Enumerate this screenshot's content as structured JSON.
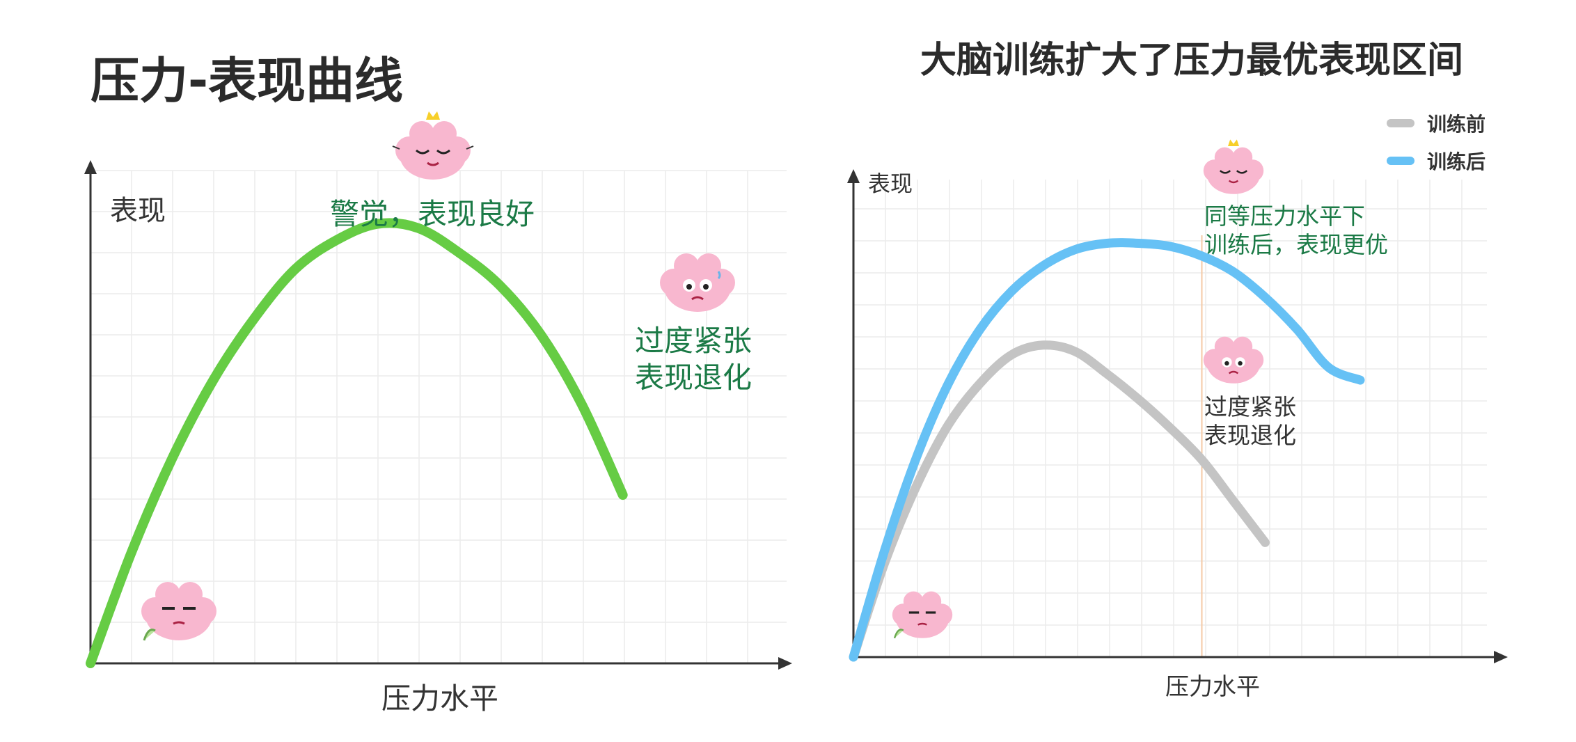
{
  "colors": {
    "left_curve": "#66cc44",
    "before_curve": "#c4c4c4",
    "after_curve": "#66c1f5",
    "annotation_green": "#1b7a46",
    "marker_line": "#f4c9a6",
    "axis": "#333333",
    "grid": "#ececec"
  },
  "icons": [
    "brain-bored-icon",
    "brain-crowned-calm-icon",
    "brain-worried-icon"
  ],
  "chart_data": [
    {
      "type": "line",
      "title": "压力-表现曲线",
      "xlabel": "压力水平",
      "ylabel": "表现",
      "grid": true,
      "xlim": [
        0,
        17
      ],
      "ylim": [
        0,
        12
      ],
      "series": [
        {
          "x": [
            0,
            1,
            2,
            3,
            4,
            5,
            6,
            7,
            8,
            9,
            10,
            11,
            12,
            13
          ],
          "values": [
            0.0,
            2.7,
            5.0,
            6.9,
            8.4,
            9.6,
            10.3,
            10.7,
            10.6,
            10.0,
            9.2,
            8.0,
            6.3,
            4.1
          ]
        }
      ],
      "annotations": [
        {
          "text": "警觉，表现良好",
          "near_x": 8
        },
        {
          "text": "过度紧张\n表现退化",
          "near_x": 13
        }
      ]
    },
    {
      "type": "line",
      "title": "大脑训练扩大了压力最优表现区间",
      "xlabel": "压力水平",
      "ylabel": "表现",
      "grid": true,
      "legend": "top-right",
      "xlim": [
        0,
        20
      ],
      "ylim": [
        0,
        15
      ],
      "series": [
        {
          "name": "训练前",
          "x": [
            0,
            1,
            2,
            3,
            4,
            5,
            6,
            7,
            8,
            9,
            10,
            11,
            12,
            13
          ],
          "values": [
            0.0,
            3.0,
            5.4,
            7.3,
            8.6,
            9.5,
            9.8,
            9.6,
            8.9,
            8.1,
            7.2,
            6.2,
            4.9,
            3.6
          ]
        },
        {
          "name": "训练后",
          "x": [
            0,
            1,
            2,
            3,
            4,
            5,
            6,
            7,
            8,
            9,
            10,
            11,
            12,
            13,
            14,
            15,
            16
          ],
          "values": [
            0.0,
            3.4,
            6.3,
            8.6,
            10.3,
            11.5,
            12.3,
            12.8,
            13.0,
            13.0,
            12.9,
            12.6,
            12.1,
            11.3,
            10.3,
            9.1,
            8.7
          ]
        }
      ],
      "marker_x": 11,
      "annotations": [
        {
          "text": "同等压力水平下\n训练后，表现更优",
          "near_x": 11
        },
        {
          "text": "过度紧张\n表现退化",
          "near_x": 11
        }
      ]
    }
  ]
}
